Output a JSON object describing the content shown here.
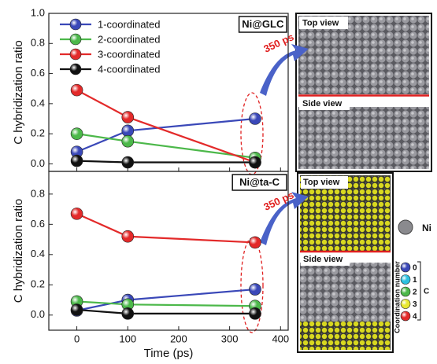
{
  "chart_data": [
    {
      "type": "line",
      "title": "Ni@GLC",
      "ylabel": "C hybridization ratio",
      "x": [
        0,
        100,
        350
      ],
      "xlim": [
        -55,
        415
      ],
      "xticks": [
        0,
        100,
        200,
        300,
        400
      ],
      "ylim": [
        -0.05,
        1.0
      ],
      "yticks": [
        0.0,
        0.2,
        0.4,
        0.6,
        0.8,
        1.0
      ],
      "legend": "upper left",
      "annotation": "350 ps",
      "series": [
        {
          "name": "1-coordinated",
          "color": "#3a48b8",
          "values": [
            0.08,
            0.22,
            0.3
          ]
        },
        {
          "name": "2-coordinated",
          "color": "#4cb84a",
          "values": [
            0.2,
            0.15,
            0.04
          ]
        },
        {
          "name": "3-coordinated",
          "color": "#e32a2a",
          "values": [
            0.49,
            0.31,
            0.01
          ]
        },
        {
          "name": "4-coordinated",
          "color": "#111111",
          "values": [
            0.02,
            0.01,
            0.01
          ]
        }
      ]
    },
    {
      "type": "line",
      "title": "Ni@ta-C",
      "ylabel": "C hybridization ratio",
      "xlabel": "Time (ps)",
      "x": [
        0,
        100,
        350
      ],
      "xlim": [
        -55,
        415
      ],
      "xticks": [
        0,
        100,
        200,
        300,
        400
      ],
      "ylim": [
        -0.1,
        0.95
      ],
      "yticks": [
        0.0,
        0.2,
        0.4,
        0.6,
        0.8
      ],
      "annotation": "350 ps",
      "series": [
        {
          "color": "#3a48b8",
          "values": [
            0.03,
            0.1,
            0.17
          ]
        },
        {
          "color": "#4cb84a",
          "values": [
            0.09,
            0.07,
            0.06
          ]
        },
        {
          "color": "#e32a2a",
          "values": [
            0.67,
            0.52,
            0.48
          ]
        },
        {
          "color": "#111111",
          "values": [
            0.035,
            0.01,
            0.01
          ]
        }
      ]
    }
  ],
  "side_panels": {
    "glc": {
      "top": "Top view",
      "side": "Side view"
    },
    "tac": {
      "top": "Top view",
      "side": "Side view"
    },
    "ni_label": "Ni",
    "coordination_title": "Coordination number",
    "coordination_levels": [
      "0",
      "1",
      "2",
      "3",
      "4"
    ],
    "element": "C"
  }
}
